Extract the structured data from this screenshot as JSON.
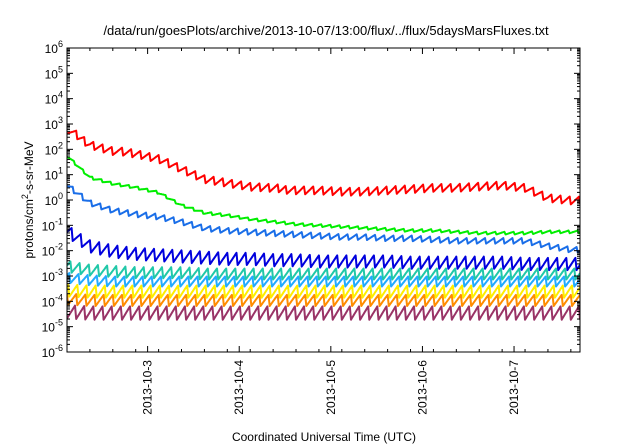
{
  "chart_data": {
    "type": "line",
    "title": "/data/run/goesPlots/archive/2013-10-07/13:00/flux/../flux/5daysMarsFluxes.txt",
    "xlabel": "Coordinated Universal Time (UTC)",
    "ylabel": {
      "prefix": "protons/cm",
      "superscript": "2",
      "suffix": "-s-sr-MeV"
    },
    "yscale": "log",
    "ylim": [
      "1e-6",
      "1e6"
    ],
    "y_ticks": [
      {
        "base": "10",
        "exp": "-6"
      },
      {
        "base": "10",
        "exp": "-5"
      },
      {
        "base": "10",
        "exp": "-4"
      },
      {
        "base": "10",
        "exp": "-3"
      },
      {
        "base": "10",
        "exp": "-2"
      },
      {
        "base": "10",
        "exp": "-1"
      },
      {
        "base": "10",
        "exp": "0"
      },
      {
        "base": "10",
        "exp": "1"
      },
      {
        "base": "10",
        "exp": "2"
      },
      {
        "base": "10",
        "exp": "3"
      },
      {
        "base": "10",
        "exp": "4"
      },
      {
        "base": "10",
        "exp": "5"
      },
      {
        "base": "10",
        "exp": "6"
      }
    ],
    "xlim": [
      "2013-10-02",
      "2013-10-07"
    ],
    "x_ticks": [
      "2013-10-3",
      "2013-10-4",
      "2013-10-5",
      "2013-10-6",
      "2013-10-7"
    ],
    "grid": false,
    "legend": "none",
    "x_days": [
      0,
      0.25,
      0.5,
      0.75,
      1,
      1.25,
      1.5,
      1.75,
      2,
      2.25,
      2.5,
      2.75,
      3,
      3.25,
      3.5,
      3.75,
      4,
      4.25,
      4.5,
      4.75,
      5,
      5.25,
      5.5
    ],
    "sawtooth_period_days": 0.1,
    "series": [
      {
        "color": "#ff0000",
        "log10_values": [
          2.8,
          2.2,
          1.95,
          1.8,
          1.6,
          1.2,
          0.8,
          0.65,
          0.5,
          0.45,
          0.4,
          0.4,
          0.35,
          0.35,
          0.4,
          0.45,
          0.5,
          0.5,
          0.55,
          0.6,
          0.5,
          0.1,
          0.0
        ],
        "sawtooth_log10_amplitude": 0.35
      },
      {
        "color": "#00ee00",
        "log10_values": [
          1.75,
          0.9,
          0.65,
          0.5,
          0.3,
          -0.2,
          -0.5,
          -0.6,
          -0.75,
          -0.85,
          -0.95,
          -1.0,
          -1.05,
          -1.1,
          -1.15,
          -1.2,
          -1.2,
          -1.25,
          -1.3,
          -1.3,
          -1.3,
          -1.25,
          -1.25
        ],
        "sawtooth_log10_amplitude": 0.12
      },
      {
        "color": "#1a6ee8",
        "log10_values": [
          0.6,
          -0.1,
          -0.4,
          -0.55,
          -0.65,
          -0.85,
          -1.1,
          -1.2,
          -1.25,
          -1.3,
          -1.35,
          -1.4,
          -1.45,
          -1.45,
          -1.5,
          -1.5,
          -1.55,
          -1.6,
          -1.6,
          -1.6,
          -1.6,
          -1.8,
          -1.95
        ],
        "sawtooth_log10_amplitude": 0.25
      },
      {
        "color": "#0000dd",
        "log10_values": [
          -1.2,
          -1.8,
          -2.0,
          -2.1,
          -2.15,
          -2.2,
          -2.25,
          -2.3,
          -2.3,
          -2.35,
          -2.35,
          -2.4,
          -2.4,
          -2.4,
          -2.4,
          -2.45,
          -2.45,
          -2.45,
          -2.45,
          -2.45,
          -2.5,
          -2.5,
          -2.5
        ],
        "sawtooth_log10_amplitude": 0.55
      },
      {
        "color": "#20c8a8",
        "log10_values": [
          -2.6,
          -2.75,
          -2.8,
          -2.85,
          -2.85,
          -2.85,
          -2.9,
          -2.9,
          -2.9,
          -2.9,
          -2.9,
          -2.9,
          -2.9,
          -2.9,
          -2.9,
          -2.9,
          -2.9,
          -2.9,
          -2.9,
          -2.9,
          -2.9,
          -2.9,
          -2.9
        ],
        "sawtooth_log10_amplitude": 0.5
      },
      {
        "color": "#22aaff",
        "log10_values": [
          -3.05,
          -3.15,
          -3.2,
          -3.2,
          -3.2,
          -3.2,
          -3.2,
          -3.2,
          -3.2,
          -3.2,
          -3.2,
          -3.2,
          -3.2,
          -3.2,
          -3.2,
          -3.2,
          -3.2,
          -3.2,
          -3.2,
          -3.2,
          -3.2,
          -3.2,
          -3.2
        ],
        "sawtooth_log10_amplitude": 0.45
      },
      {
        "color": "#ffee00",
        "log10_values": [
          -3.55,
          -3.6,
          -3.6,
          -3.6,
          -3.6,
          -3.6,
          -3.6,
          -3.6,
          -3.6,
          -3.6,
          -3.6,
          -3.6,
          -3.6,
          -3.6,
          -3.6,
          -3.6,
          -3.6,
          -3.6,
          -3.6,
          -3.6,
          -3.6,
          -3.6,
          -3.6
        ],
        "sawtooth_log10_amplitude": 0.55
      },
      {
        "color": "#ff8c00",
        "log10_values": [
          -3.9,
          -3.95,
          -3.95,
          -3.95,
          -3.95,
          -3.95,
          -3.95,
          -3.95,
          -3.95,
          -3.95,
          -3.95,
          -3.95,
          -3.95,
          -3.95,
          -3.95,
          -3.95,
          -3.95,
          -3.95,
          -3.95,
          -3.95,
          -3.95,
          -3.95,
          -3.95
        ],
        "sawtooth_log10_amplitude": 0.5
      },
      {
        "color": "#993366",
        "log10_values": [
          -4.4,
          -4.45,
          -4.45,
          -4.45,
          -4.45,
          -4.45,
          -4.45,
          -4.45,
          -4.45,
          -4.45,
          -4.45,
          -4.45,
          -4.45,
          -4.45,
          -4.45,
          -4.45,
          -4.45,
          -4.45,
          -4.45,
          -4.45,
          -4.45,
          -4.45,
          -4.45
        ],
        "sawtooth_log10_amplitude": 0.6
      }
    ]
  }
}
